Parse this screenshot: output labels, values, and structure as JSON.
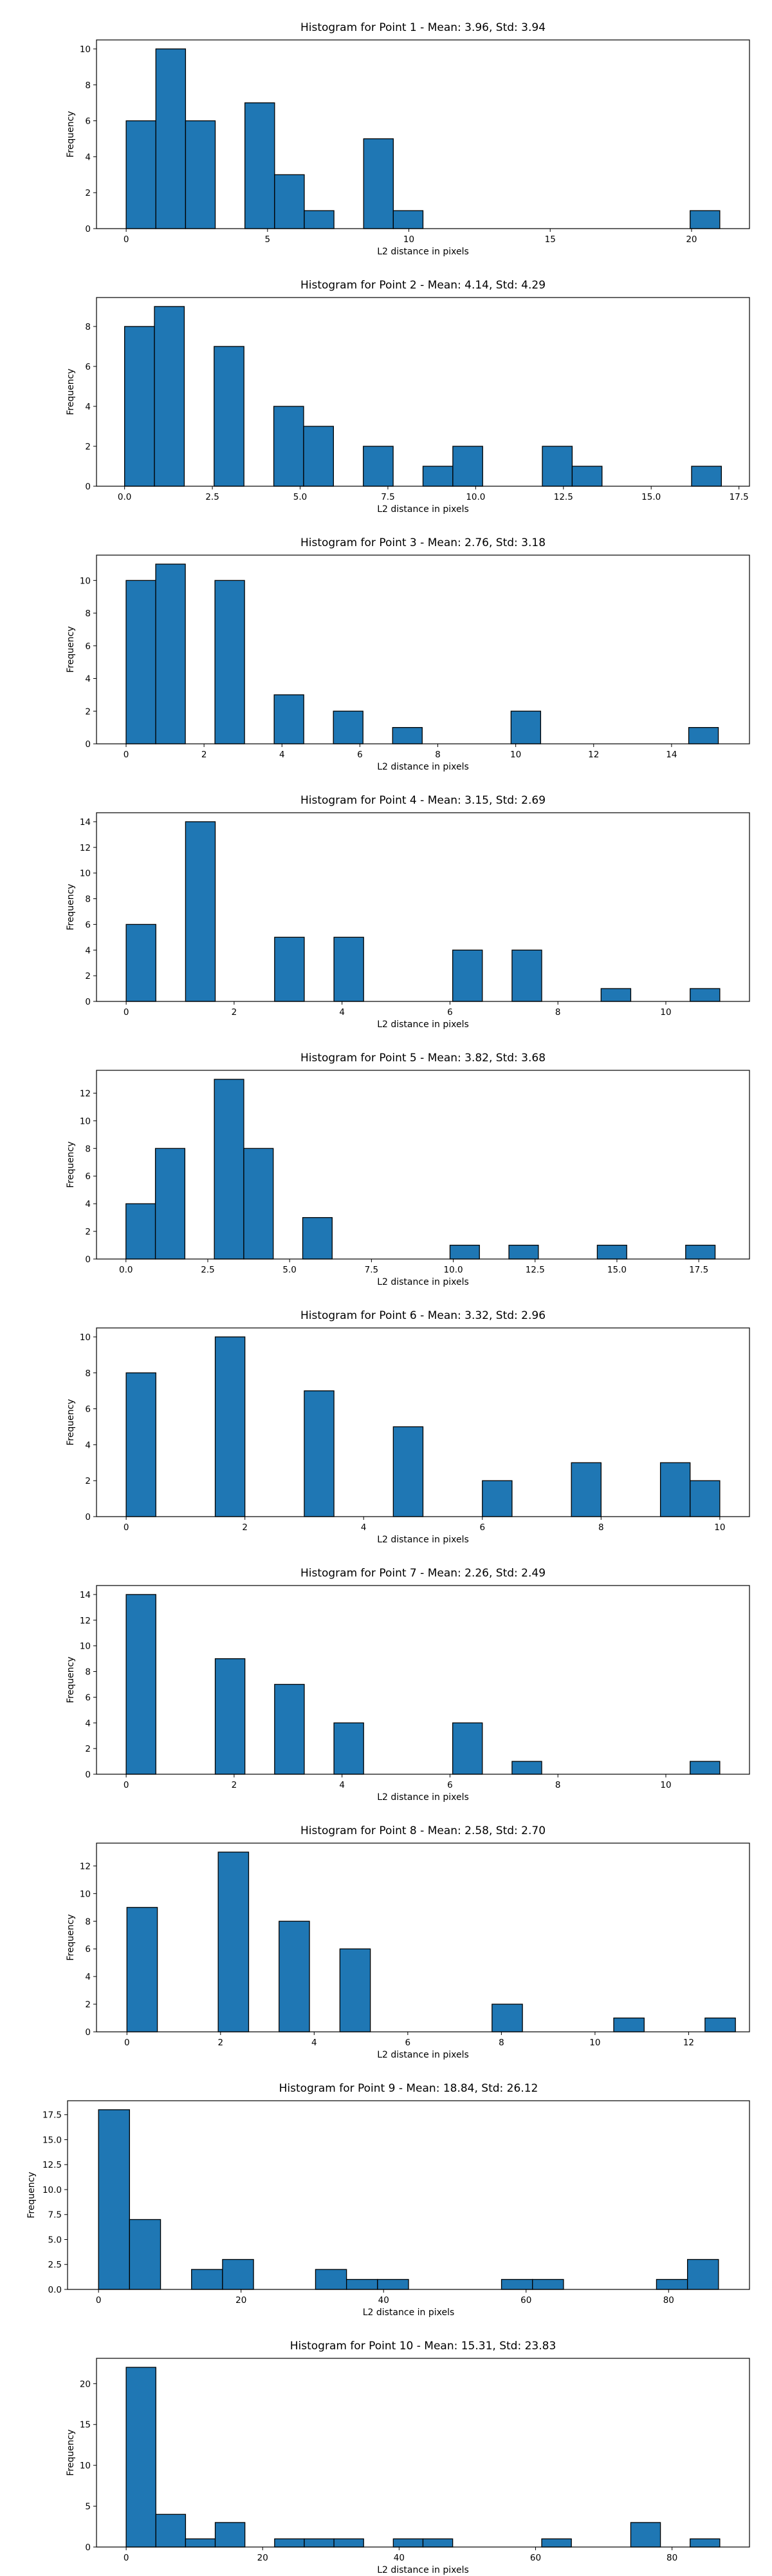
{
  "style": {
    "bar_color": "#1f77b4",
    "edge_color": "#000000"
  },
  "chart_data": [
    {
      "type": "bar",
      "title": "Histogram for Point 1 - Mean: 3.96, Std: 3.94",
      "xlabel": "L2 distance in pixels",
      "ylabel": "Frequency",
      "xlim": [
        -1.05,
        22.05
      ],
      "ylim": [
        0,
        10.5
      ],
      "xticks": [
        0,
        5,
        10,
        15,
        20
      ],
      "xtick_labels": [
        "0",
        "5",
        "10",
        "15",
        "20"
      ],
      "yticks": [
        0,
        2,
        4,
        6,
        8,
        10
      ],
      "ytick_labels": [
        "0",
        "2",
        "4",
        "6",
        "8",
        "10"
      ],
      "bins": {
        "start": 0.0,
        "width": 1.05
      },
      "values": [
        6,
        10,
        6,
        0,
        7,
        3,
        1,
        0,
        5,
        1,
        0,
        0,
        0,
        0,
        0,
        0,
        0,
        0,
        0,
        1
      ]
    },
    {
      "type": "bar",
      "title": "Histogram for Point 2 - Mean: 4.14, Std: 4.29",
      "xlabel": "L2 distance in pixels",
      "ylabel": "Frequency",
      "xlim": [
        -0.8,
        17.8
      ],
      "ylim": [
        0,
        9.45
      ],
      "xticks": [
        0,
        2.5,
        5,
        7.5,
        10,
        12.5,
        15,
        17.5
      ],
      "xtick_labels": [
        "0.0",
        "2.5",
        "5.0",
        "7.5",
        "10.0",
        "12.5",
        "15.0",
        "17.5"
      ],
      "yticks": [
        0,
        2,
        4,
        6,
        8
      ],
      "ytick_labels": [
        "0",
        "2",
        "4",
        "6",
        "8"
      ],
      "bins": {
        "start": 0.0,
        "width": 0.85
      },
      "values": [
        8,
        9,
        0,
        7,
        0,
        4,
        3,
        0,
        2,
        0,
        1,
        2,
        0,
        0,
        2,
        1,
        0,
        0,
        0,
        1
      ]
    },
    {
      "type": "bar",
      "title": "Histogram for Point 3 - Mean: 2.76, Std: 3.18",
      "xlabel": "L2 distance in pixels",
      "ylabel": "Frequency",
      "xlim": [
        -0.76,
        16.0
      ],
      "ylim": [
        0,
        11.55
      ],
      "xticks": [
        0,
        2,
        4,
        6,
        8,
        10,
        12,
        14
      ],
      "xtick_labels": [
        "0",
        "2",
        "4",
        "6",
        "8",
        "10",
        "12",
        "14"
      ],
      "yticks": [
        0,
        2,
        4,
        6,
        8,
        10
      ],
      "ytick_labels": [
        "0",
        "2",
        "4",
        "6",
        "8",
        "10"
      ],
      "bins": {
        "start": 0.0,
        "width": 0.76
      },
      "values": [
        10,
        11,
        0,
        10,
        0,
        3,
        0,
        2,
        0,
        1,
        0,
        0,
        0,
        2,
        0,
        0,
        0,
        0,
        0,
        1
      ]
    },
    {
      "type": "bar",
      "title": "Histogram for Point 4 - Mean: 3.15, Std: 2.69",
      "xlabel": "L2 distance in pixels",
      "ylabel": "Frequency",
      "xlim": [
        -0.55,
        11.55
      ],
      "ylim": [
        0,
        14.7
      ],
      "xticks": [
        0,
        2,
        4,
        6,
        8,
        10
      ],
      "xtick_labels": [
        "0",
        "2",
        "4",
        "6",
        "8",
        "10"
      ],
      "yticks": [
        0,
        2,
        4,
        6,
        8,
        10,
        12,
        14
      ],
      "ytick_labels": [
        "0",
        "2",
        "4",
        "6",
        "8",
        "10",
        "12",
        "14"
      ],
      "bins": {
        "start": 0.0,
        "width": 0.55
      },
      "values": [
        6,
        0,
        14,
        0,
        0,
        5,
        0,
        5,
        0,
        0,
        0,
        4,
        0,
        4,
        0,
        0,
        1,
        0,
        0,
        1
      ]
    },
    {
      "type": "bar",
      "title": "Histogram for Point 5 - Mean: 3.82, Std: 3.68",
      "xlabel": "L2 distance in pixels",
      "ylabel": "Frequency",
      "xlim": [
        -0.9,
        19.05
      ],
      "ylim": [
        0,
        13.65
      ],
      "xticks": [
        0,
        2.5,
        5,
        7.5,
        10,
        12.5,
        15,
        17.5
      ],
      "xtick_labels": [
        "0.0",
        "2.5",
        "5.0",
        "7.5",
        "10.0",
        "12.5",
        "15.0",
        "17.5"
      ],
      "yticks": [
        0,
        2,
        4,
        6,
        8,
        10,
        12
      ],
      "ytick_labels": [
        "0",
        "2",
        "4",
        "6",
        "8",
        "10",
        "12"
      ],
      "bins": {
        "start": 0.0,
        "width": 0.9
      },
      "values": [
        4,
        8,
        0,
        13,
        8,
        0,
        3,
        0,
        0,
        0,
        0,
        1,
        0,
        1,
        0,
        0,
        1,
        0,
        0,
        1
      ]
    },
    {
      "type": "bar",
      "title": "Histogram for Point 6 - Mean: 3.32, Std: 2.96",
      "xlabel": "L2 distance in pixels",
      "ylabel": "Frequency",
      "xlim": [
        -0.5,
        10.5
      ],
      "ylim": [
        0,
        10.5
      ],
      "xticks": [
        0,
        2,
        4,
        6,
        8,
        10
      ],
      "xtick_labels": [
        "0",
        "2",
        "4",
        "6",
        "8",
        "10"
      ],
      "yticks": [
        0,
        2,
        4,
        6,
        8,
        10
      ],
      "ytick_labels": [
        "0",
        "2",
        "4",
        "6",
        "8",
        "10"
      ],
      "bins": {
        "start": 0.0,
        "width": 0.5
      },
      "values": [
        8,
        0,
        0,
        10,
        0,
        0,
        7,
        0,
        0,
        5,
        0,
        0,
        2,
        0,
        0,
        3,
        0,
        0,
        3,
        2
      ]
    },
    {
      "type": "bar",
      "title": "Histogram for Point 7 - Mean: 2.26, Std: 2.49",
      "xlabel": "L2 distance in pixels",
      "ylabel": "Frequency",
      "xlim": [
        -0.55,
        11.55
      ],
      "ylim": [
        0,
        14.7
      ],
      "xticks": [
        0,
        2,
        4,
        6,
        8,
        10
      ],
      "xtick_labels": [
        "0",
        "2",
        "4",
        "6",
        "8",
        "10"
      ],
      "yticks": [
        0,
        2,
        4,
        6,
        8,
        10,
        12,
        14
      ],
      "ytick_labels": [
        "0",
        "2",
        "4",
        "6",
        "8",
        "10",
        "12",
        "14"
      ],
      "bins": {
        "start": 0.0,
        "width": 0.55
      },
      "values": [
        14,
        0,
        0,
        9,
        0,
        7,
        0,
        4,
        0,
        0,
        0,
        4,
        0,
        1,
        0,
        0,
        0,
        0,
        0,
        1
      ]
    },
    {
      "type": "bar",
      "title": "Histogram for Point 8 - Mean: 2.58, Std: 2.70",
      "xlabel": "L2 distance in pixels",
      "ylabel": "Frequency",
      "xlim": [
        -0.65,
        13.3
      ],
      "ylim": [
        0,
        13.65
      ],
      "xticks": [
        0,
        2,
        4,
        6,
        8,
        10,
        12
      ],
      "xtick_labels": [
        "0",
        "2",
        "4",
        "6",
        "8",
        "10",
        "12"
      ],
      "yticks": [
        0,
        2,
        4,
        6,
        8,
        10,
        12
      ],
      "ytick_labels": [
        "0",
        "2",
        "4",
        "6",
        "8",
        "10",
        "12"
      ],
      "bins": {
        "start": 0.0,
        "width": 0.65
      },
      "values": [
        9,
        0,
        0,
        13,
        0,
        8,
        0,
        6,
        0,
        0,
        0,
        0,
        2,
        0,
        0,
        0,
        1,
        0,
        0,
        1
      ]
    },
    {
      "type": "bar",
      "title": "Histogram for Point 9 - Mean: 18.84, Std: 26.12",
      "xlabel": "L2 distance in pixels",
      "ylabel": "Frequency",
      "xlim": [
        -4.35,
        91.35
      ],
      "ylim": [
        0,
        18.9
      ],
      "xticks": [
        0,
        20,
        40,
        60,
        80
      ],
      "xtick_labels": [
        "0",
        "20",
        "40",
        "60",
        "80"
      ],
      "yticks": [
        0,
        2.5,
        5,
        7.5,
        10,
        12.5,
        15,
        17.5
      ],
      "ytick_labels": [
        "0.0",
        "2.5",
        "5.0",
        "7.5",
        "10.0",
        "12.5",
        "15.0",
        "17.5"
      ],
      "bins": {
        "start": 0.0,
        "width": 4.35
      },
      "values": [
        18,
        7,
        0,
        2,
        3,
        0,
        0,
        2,
        1,
        1,
        0,
        0,
        0,
        1,
        1,
        0,
        0,
        0,
        1,
        3
      ]
    },
    {
      "type": "bar",
      "title": "Histogram for Point 10 - Mean: 15.31, Std: 23.83",
      "xlabel": "L2 distance in pixels",
      "ylabel": "Frequency",
      "xlim": [
        -4.35,
        91.35
      ],
      "ylim": [
        0,
        23.1
      ],
      "xticks": [
        0,
        20,
        40,
        60,
        80
      ],
      "xtick_labels": [
        "0",
        "20",
        "40",
        "60",
        "80"
      ],
      "yticks": [
        0,
        5,
        10,
        15,
        20
      ],
      "ytick_labels": [
        "0",
        "5",
        "10",
        "15",
        "20"
      ],
      "bins": {
        "start": 0.0,
        "width": 4.35
      },
      "values": [
        22,
        4,
        1,
        3,
        0,
        1,
        1,
        1,
        0,
        1,
        1,
        0,
        0,
        0,
        1,
        0,
        0,
        3,
        0,
        1
      ]
    }
  ]
}
